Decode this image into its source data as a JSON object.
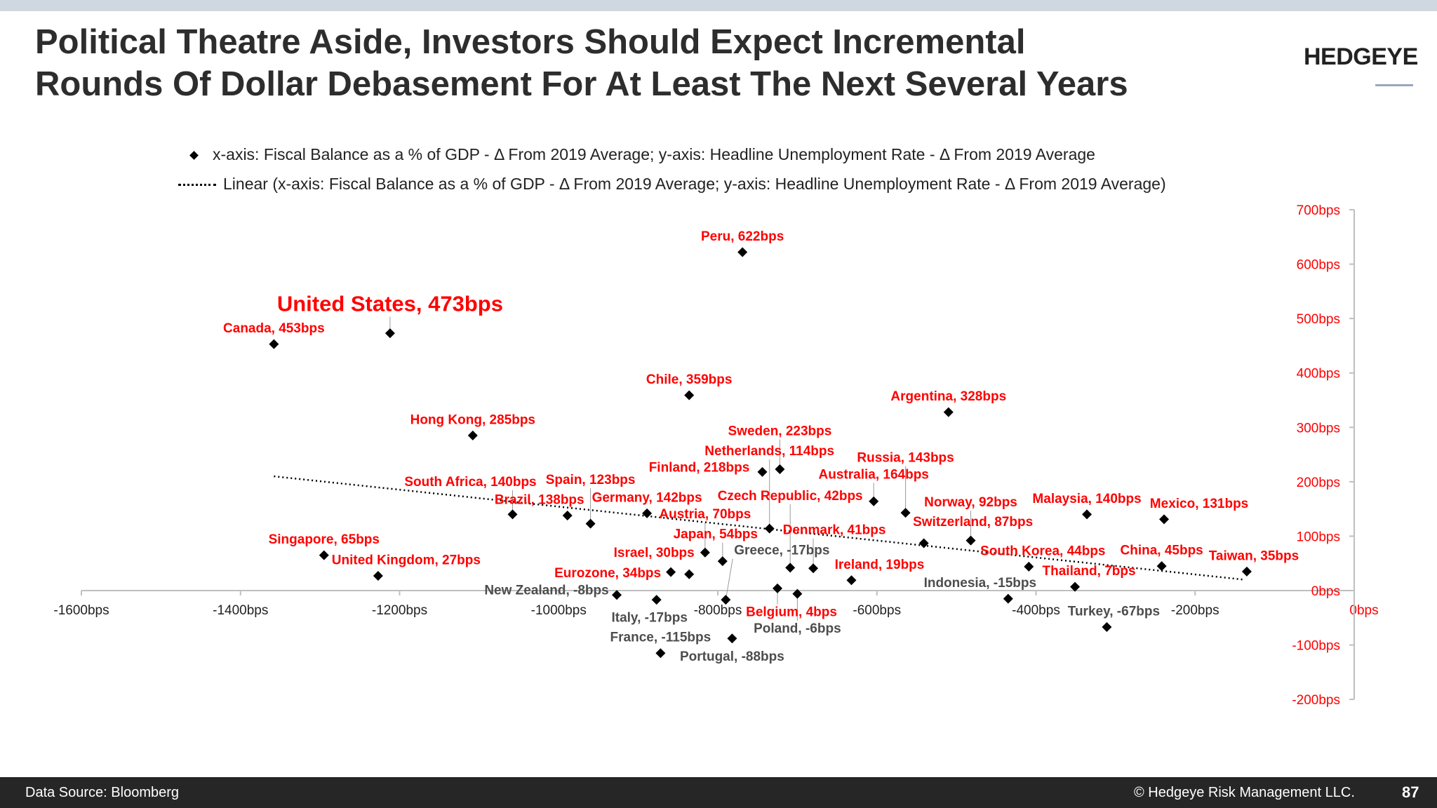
{
  "header": {
    "title_line1": "Political Theatre Aside, Investors Should Expect Incremental",
    "title_line2": "Rounds Of Dollar Debasement For At Least The Next Several Years",
    "logo": "HEDGEYE"
  },
  "footer": {
    "source": "Data Source: Bloomberg",
    "copyright": "© Hedgeye Risk Management LLC.",
    "page": "87"
  },
  "colors": {
    "positive_label": "#ff0000",
    "negative_label": "#4d4d4d",
    "marker": "#000000",
    "y_axis_labels": "#ff0000",
    "footer_bg": "#262626"
  },
  "chart_data": {
    "type": "scatter",
    "legend": [
      {
        "marker": "diamond",
        "label": "x-axis: Fiscal Balance as a % of GDP - Δ From 2019 Average; y-axis: Headline Unemployment Rate - Δ From 2019 Average"
      },
      {
        "marker": "dotted-line",
        "label": "Linear (x-axis: Fiscal Balance as a % of GDP - Δ From 2019 Average; y-axis: Headline Unemployment Rate - Δ From 2019 Average)"
      }
    ],
    "legend_position": "top",
    "xlim": [
      -1600,
      0
    ],
    "ylim": [
      -200,
      700
    ],
    "x_ticks": [
      "-1600bps",
      "-1400bps",
      "-1200bps",
      "-1000bps",
      "-800bps",
      "-600bps",
      "-400bps",
      "-200bps",
      "0bps"
    ],
    "x_tick_values": [
      -1600,
      -1400,
      -1200,
      -1000,
      -800,
      -600,
      -400,
      -200,
      0
    ],
    "y_ticks": [
      "700bps",
      "600bps",
      "500bps",
      "400bps",
      "300bps",
      "200bps",
      "100bps",
      "0bps",
      "-100bps",
      "-200bps"
    ],
    "y_tick_values": [
      700,
      600,
      500,
      400,
      300,
      200,
      100,
      0,
      -100,
      -200
    ],
    "y_axis_side": "right",
    "grid": false,
    "trendline": {
      "x": [
        -1358,
        -138
      ],
      "y": [
        210,
        20
      ]
    },
    "points": [
      {
        "label": "Peru, 622bps",
        "x": -769,
        "y": 622
      },
      {
        "label": "United States, 473bps",
        "x": -1212,
        "y": 473,
        "highlight": true
      },
      {
        "label": "Canada, 453bps",
        "x": -1358,
        "y": 453
      },
      {
        "label": "Chile, 359bps",
        "x": -836,
        "y": 359
      },
      {
        "label": "Argentina, 328bps",
        "x": -510,
        "y": 328
      },
      {
        "label": "Hong Kong, 285bps",
        "x": -1108,
        "y": 285
      },
      {
        "label": "Sweden, 223bps",
        "x": -722,
        "y": 223
      },
      {
        "label": "Finland, 218bps",
        "x": -744,
        "y": 218
      },
      {
        "label": "Australia, 164bps",
        "x": -604,
        "y": 164
      },
      {
        "label": "Russia, 143bps",
        "x": -564,
        "y": 143
      },
      {
        "label": "Malaysia, 140bps",
        "x": -336,
        "y": 140
      },
      {
        "label": "Germany, 142bps",
        "x": -889,
        "y": 142
      },
      {
        "label": "Brazil, 138bps",
        "x": -989,
        "y": 138
      },
      {
        "label": "South Africa, 140bps",
        "x": -1058,
        "y": 140
      },
      {
        "label": "Spain, 123bps",
        "x": -960,
        "y": 123
      },
      {
        "label": "Mexico, 131bps",
        "x": -239,
        "y": 131
      },
      {
        "label": "Netherlands, 114bps",
        "x": -735,
        "y": 114
      },
      {
        "label": "Norway, 92bps",
        "x": -482,
        "y": 92
      },
      {
        "label": "Switzerland, 87bps",
        "x": -541,
        "y": 87
      },
      {
        "label": "Singapore, 65bps",
        "x": -1295,
        "y": 65
      },
      {
        "label": "Austria, 70bps",
        "x": -816,
        "y": 70
      },
      {
        "label": "Japan, 54bps",
        "x": -794,
        "y": 54
      },
      {
        "label": "Czech Republic, 42bps",
        "x": -709,
        "y": 42
      },
      {
        "label": "Denmark, 41bps",
        "x": -680,
        "y": 41
      },
      {
        "label": "Eurozone, 34bps",
        "x": -859,
        "y": 34
      },
      {
        "label": "Israel, 30bps",
        "x": -836,
        "y": 30
      },
      {
        "label": "United Kingdom, 27bps",
        "x": -1227,
        "y": 27
      },
      {
        "label": "South Korea, 44bps",
        "x": -409,
        "y": 44
      },
      {
        "label": "China, 45bps",
        "x": -242,
        "y": 45
      },
      {
        "label": "Taiwan, 35bps",
        "x": -135,
        "y": 35
      },
      {
        "label": "Ireland, 19bps",
        "x": -632,
        "y": 19
      },
      {
        "label": "Thailand, 7bps",
        "x": -351,
        "y": 7
      },
      {
        "label": "Belgium, 4bps",
        "x": -725,
        "y": 4
      },
      {
        "label": "Poland, -6bps",
        "x": -700,
        "y": -6
      },
      {
        "label": "New Zealand, -8bps",
        "x": -927,
        "y": -8
      },
      {
        "label": "Greece, -17bps",
        "x": -790,
        "y": -17
      },
      {
        "label": "Italy, -17bps",
        "x": -877,
        "y": -17
      },
      {
        "label": "Indonesia, -15bps",
        "x": -435,
        "y": -15
      },
      {
        "label": "Turkey, -67bps",
        "x": -311,
        "y": -67
      },
      {
        "label": "Portugal, -88bps",
        "x": -782,
        "y": -88
      },
      {
        "label": "France, -115bps",
        "x": -872,
        "y": -115
      }
    ]
  }
}
